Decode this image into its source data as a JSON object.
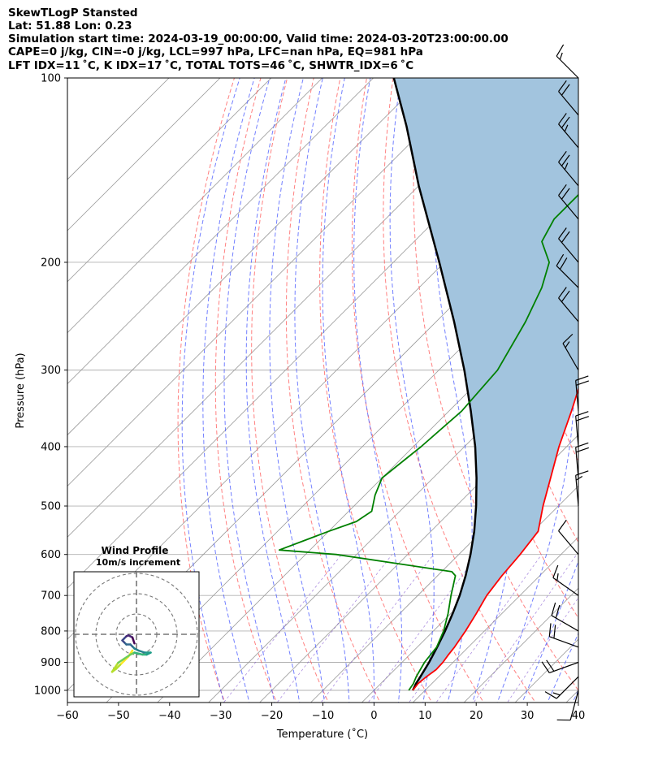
{
  "header": {
    "line1": "SkewTLogP Stansted",
    "line2": "Lat: 51.88   Lon: 0.23",
    "line3": "Simulation start time: 2024-03-19_00:00:00, Valid time: 2024-03-20T23:00:00.00",
    "line4": "CAPE=0 j/kg, CIN=-0 j/kg, LCL=997 hPa, LFC=nan hPa, EQ=981 hPa",
    "line5": "LFT IDX=11 ˚C, K IDX=17 ˚C, TOTAL TOTS=46 ˚C, SHWTR_IDX=6 ˚C"
  },
  "chart_data": {
    "type": "line",
    "xlabel": "Temperature (˚C)",
    "ylabel": "Pressure (hPa)",
    "xlim": [
      -60,
      40
    ],
    "ylim": [
      1050,
      100
    ],
    "y_scale": "log",
    "skew": true,
    "grid": true,
    "x_ticks": [
      -60,
      -50,
      -40,
      -30,
      -20,
      -10,
      0,
      10,
      20,
      30,
      40
    ],
    "y_ticks": [
      1000,
      900,
      800,
      700,
      600,
      500,
      400,
      300,
      200,
      100
    ],
    "colors": {
      "temperature": "#ff0000",
      "dewpoint": "#008000",
      "parcel": "#000000",
      "fill": "#a2c4de",
      "dry_adiabat": "#ff5555",
      "moist_adiabat": "#4455ff",
      "mixing_ratio": "#7744cc",
      "isotherm": "#999999"
    },
    "series": [
      {
        "key": "temperature",
        "points": [
          [
            1000,
            7.6
          ],
          [
            975,
            7.3
          ],
          [
            950,
            7.6
          ],
          [
            925,
            8.1
          ],
          [
            900,
            8.0
          ],
          [
            875,
            7.6
          ],
          [
            850,
            7.3
          ],
          [
            800,
            6.3
          ],
          [
            750,
            5.0
          ],
          [
            700,
            3.5
          ],
          [
            650,
            2.6
          ],
          [
            600,
            2.0
          ],
          [
            550,
            1.0
          ],
          [
            500,
            -3.0
          ],
          [
            450,
            -7.0
          ],
          [
            400,
            -11.5
          ],
          [
            350,
            -16.0
          ],
          [
            300,
            -21.5
          ],
          [
            270,
            -26.5
          ],
          [
            250,
            -31.0
          ],
          [
            230,
            -36.0
          ],
          [
            210,
            -39.5
          ],
          [
            200,
            -40.5
          ],
          [
            180,
            -41.5
          ],
          [
            160,
            -42.5
          ],
          [
            140,
            -42.5
          ],
          [
            120,
            -41.5
          ],
          [
            110,
            -39.5
          ],
          [
            100,
            -37.5
          ]
        ]
      },
      {
        "key": "dewpoint",
        "points": [
          [
            1000,
            6.8
          ],
          [
            975,
            6.4
          ],
          [
            950,
            5.6
          ],
          [
            925,
            5.0
          ],
          [
            900,
            4.4
          ],
          [
            850,
            3.8
          ],
          [
            800,
            2.0
          ],
          [
            750,
            -0.5
          ],
          [
            700,
            -3.5
          ],
          [
            650,
            -6.5
          ],
          [
            640,
            -8.0
          ],
          [
            600,
            -34.0
          ],
          [
            590,
            -46.0
          ],
          [
            550,
            -40.0
          ],
          [
            530,
            -36.5
          ],
          [
            510,
            -35.5
          ],
          [
            480,
            -38.0
          ],
          [
            450,
            -40.0
          ],
          [
            400,
            -38.5
          ],
          [
            350,
            -37.5
          ],
          [
            300,
            -38.5
          ],
          [
            250,
            -42.5
          ],
          [
            220,
            -46.0
          ],
          [
            200,
            -49.5
          ],
          [
            185,
            -55.0
          ],
          [
            170,
            -57.0
          ],
          [
            150,
            -57.0
          ],
          [
            130,
            -56.0
          ],
          [
            110,
            -54.0
          ],
          [
            100,
            -53.0
          ]
        ]
      },
      {
        "key": "parcel",
        "points": [
          [
            1000,
            7.6
          ],
          [
            975,
            6.9
          ],
          [
            950,
            6.4
          ],
          [
            900,
            5.3
          ],
          [
            850,
            3.9
          ],
          [
            800,
            2.3
          ],
          [
            750,
            0.4
          ],
          [
            700,
            -1.8
          ],
          [
            650,
            -4.5
          ],
          [
            600,
            -7.7
          ],
          [
            550,
            -11.5
          ],
          [
            500,
            -16.1
          ],
          [
            450,
            -21.5
          ],
          [
            400,
            -27.9
          ],
          [
            350,
            -35.7
          ],
          [
            300,
            -45.0
          ],
          [
            250,
            -56.5
          ],
          [
            200,
            -71.0
          ],
          [
            150,
            -90.0
          ],
          [
            120,
            -104.0
          ],
          [
            100,
            -116.0
          ]
        ]
      }
    ],
    "wind_barbs": [
      {
        "p": 1000,
        "dir": 195,
        "spd": 10
      },
      {
        "p": 950,
        "dir": 225,
        "spd": 15
      },
      {
        "p": 900,
        "dir": 250,
        "spd": 20
      },
      {
        "p": 850,
        "dir": 290,
        "spd": 20
      },
      {
        "p": 800,
        "dir": 300,
        "spd": 20
      },
      {
        "p": 700,
        "dir": 305,
        "spd": 15
      },
      {
        "p": 600,
        "dir": 320,
        "spd": 10
      },
      {
        "p": 500,
        "dir": 355,
        "spd": 15
      },
      {
        "p": 450,
        "dir": 355,
        "spd": 20
      },
      {
        "p": 400,
        "dir": 355,
        "spd": 20
      },
      {
        "p": 350,
        "dir": 355,
        "spd": 20
      },
      {
        "p": 300,
        "dir": 330,
        "spd": 15
      },
      {
        "p": 250,
        "dir": 320,
        "spd": 20
      },
      {
        "p": 220,
        "dir": 315,
        "spd": 20
      },
      {
        "p": 200,
        "dir": 320,
        "spd": 20
      },
      {
        "p": 170,
        "dir": 320,
        "spd": 20
      },
      {
        "p": 150,
        "dir": 320,
        "spd": 25
      },
      {
        "p": 130,
        "dir": 320,
        "spd": 25
      },
      {
        "p": 115,
        "dir": 320,
        "spd": 20
      },
      {
        "p": 100,
        "dir": 315,
        "spd": 15
      }
    ],
    "hodograph": {
      "title": "Wind Profile",
      "subtitle": "10m/s increment",
      "ring_increment": 10,
      "points": [
        [
          -2,
          -8
        ],
        [
          -4,
          -11
        ],
        [
          -6,
          -13
        ],
        [
          -8,
          -15
        ],
        [
          -10,
          -17
        ],
        [
          -12,
          -18.5
        ],
        [
          -9,
          -14
        ],
        [
          -6,
          -12
        ],
        [
          -3,
          -10
        ],
        [
          -1,
          -9
        ],
        [
          1,
          -9.5
        ],
        [
          3,
          -10
        ],
        [
          5,
          -10
        ],
        [
          6,
          -9.5
        ],
        [
          7,
          -9
        ],
        [
          4,
          -9
        ],
        [
          1,
          -8
        ],
        [
          -1,
          -7
        ],
        [
          -2,
          -6
        ],
        [
          -3,
          -5
        ],
        [
          -5,
          -5
        ],
        [
          -6,
          -4
        ],
        [
          -7,
          -3
        ],
        [
          -6,
          -2
        ],
        [
          -5,
          -1
        ],
        [
          -4,
          -0.5
        ],
        [
          -3,
          -1
        ],
        [
          -2,
          -1.5
        ],
        [
          -1.5,
          -3
        ],
        [
          -1,
          -4.5
        ]
      ]
    }
  }
}
